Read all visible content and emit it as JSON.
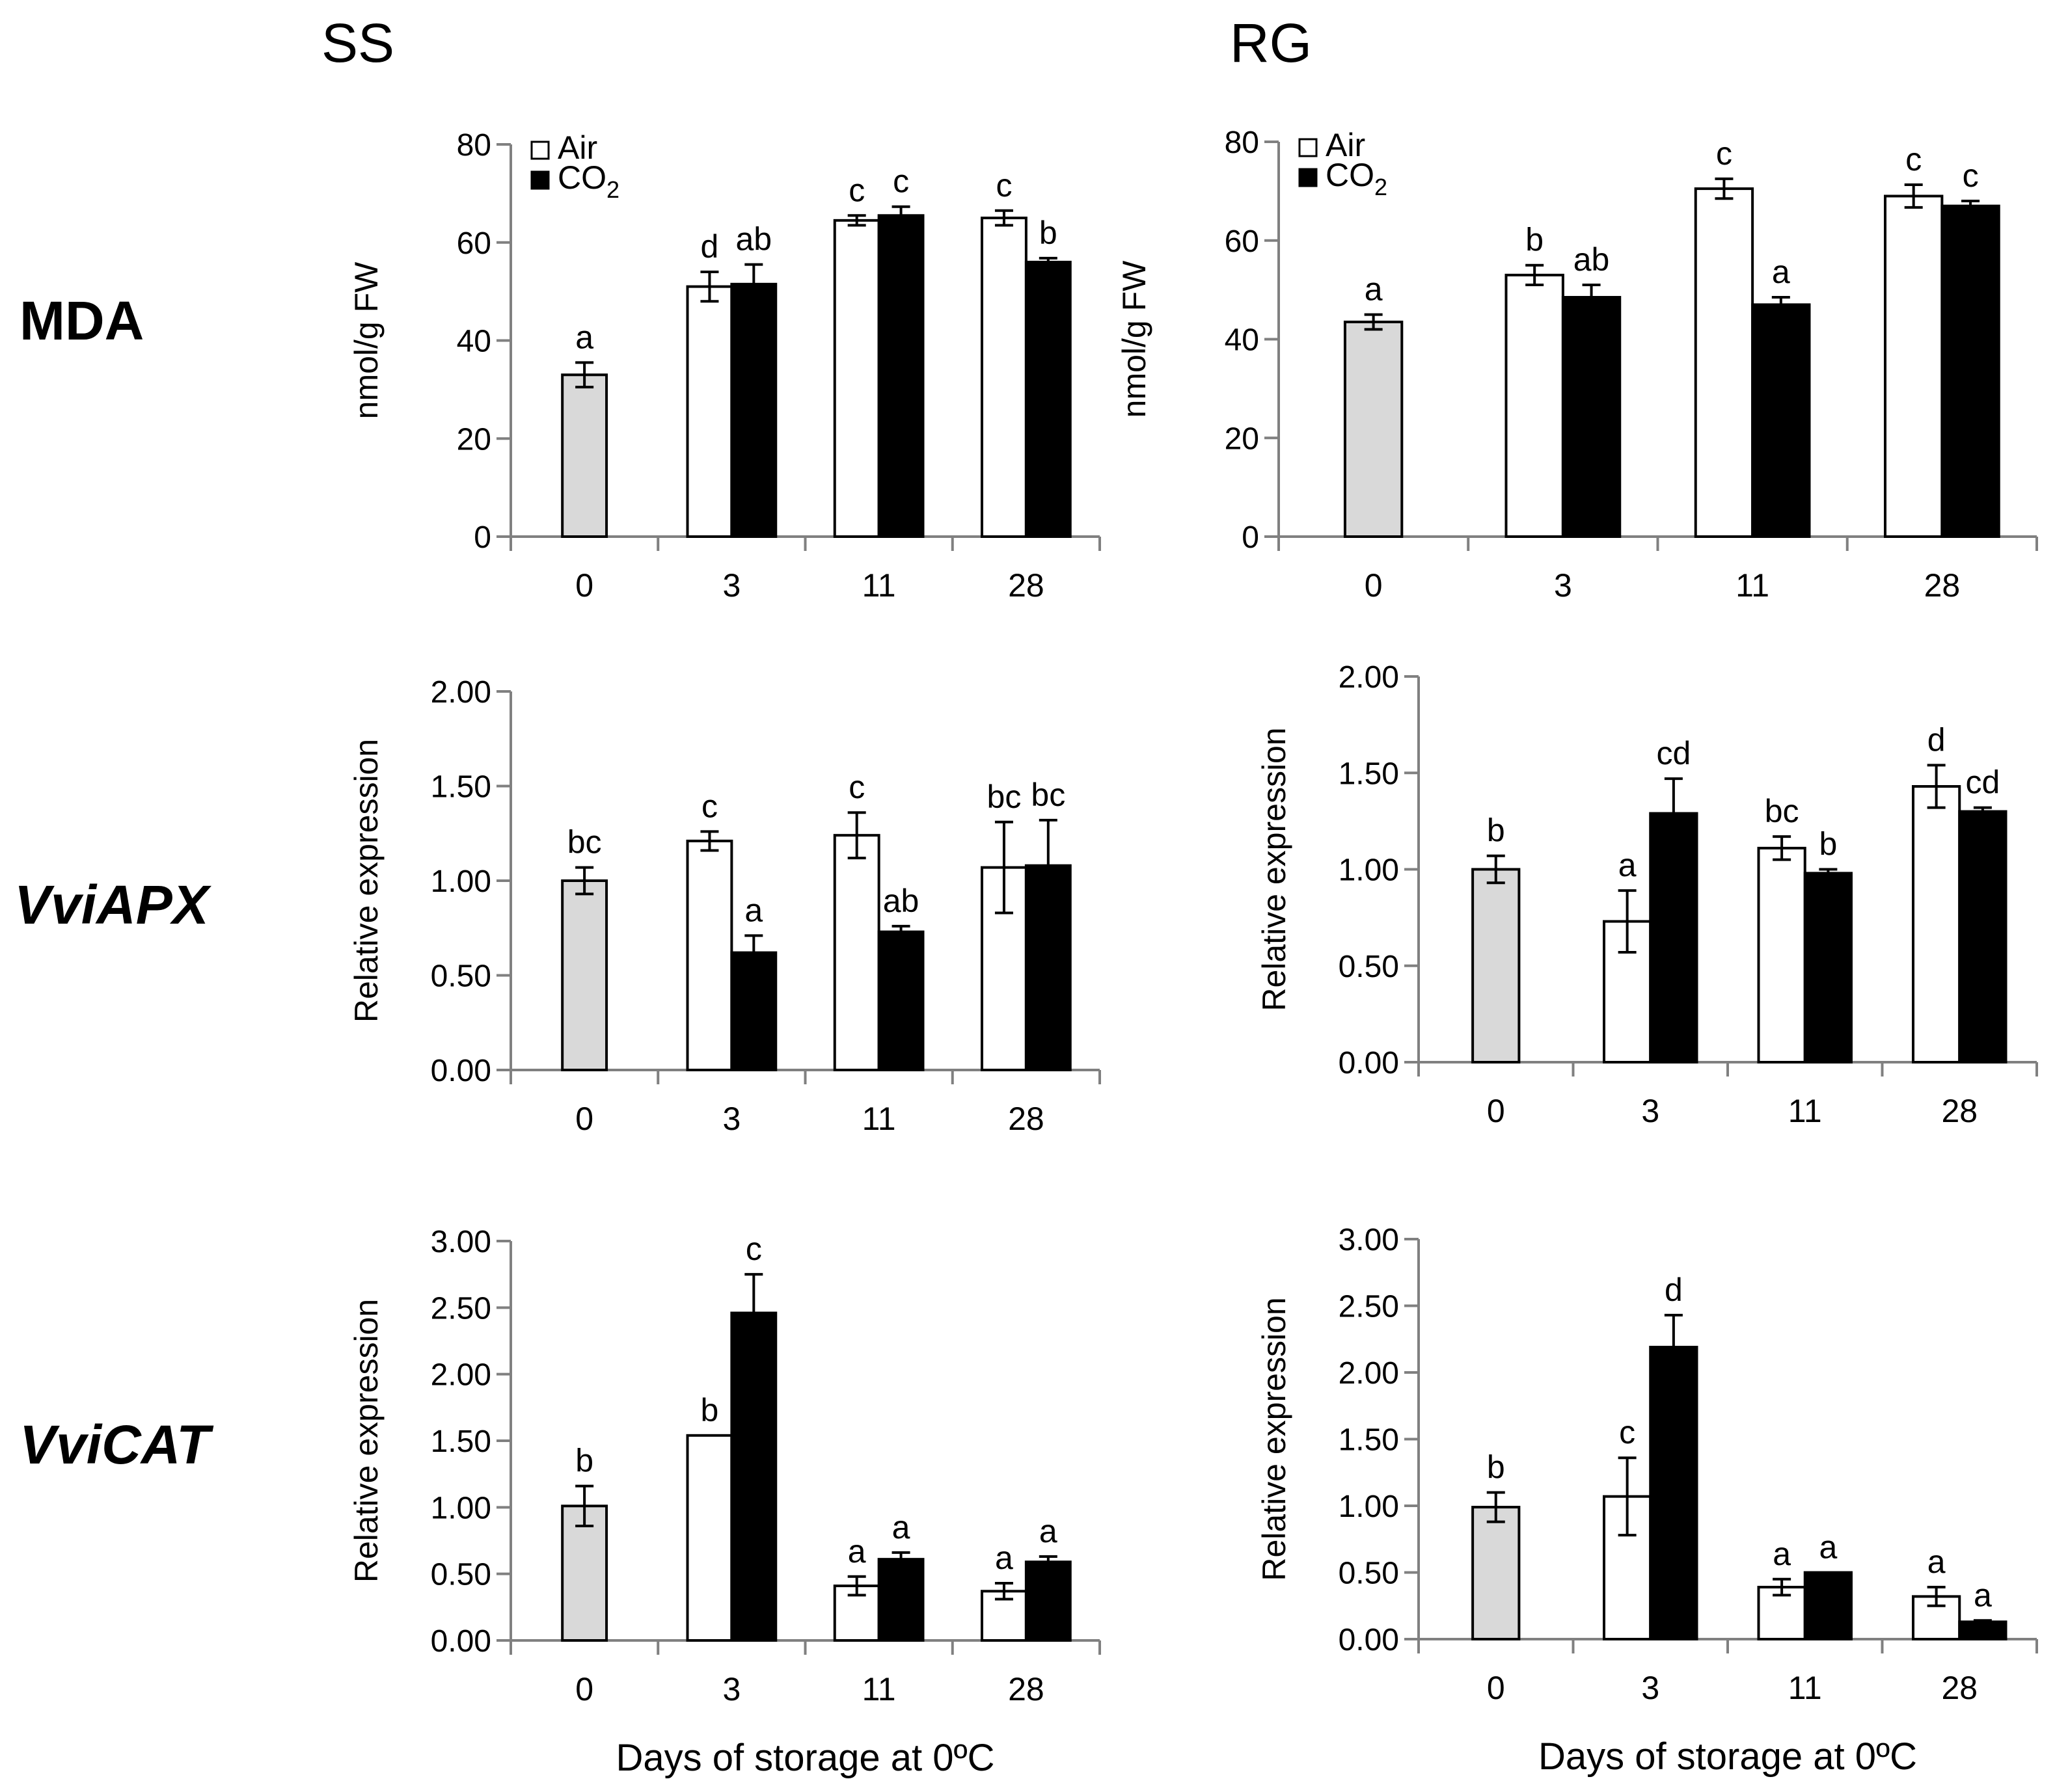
{
  "figure": {
    "column_titles": [
      "SS",
      "RG"
    ],
    "row_labels": [
      "MDA",
      "VviAPX",
      "VviCAT"
    ],
    "xlabel": "Days of storage at 0ºC",
    "legend": [
      {
        "label": "Air",
        "fill": "#ffffff"
      },
      {
        "label": "CO",
        "subscript": "2",
        "fill": "#000000"
      }
    ],
    "colors": {
      "control": "#d9d9d9",
      "air": "#ffffff",
      "co2": "#000000",
      "axis": "#808080",
      "stroke": "#000000"
    }
  },
  "chart_data": [
    {
      "id": "ss-mda",
      "type": "bar",
      "cultivar": "SS",
      "row": "MDA",
      "title": "",
      "xlabel": "",
      "ylabel": "nmol/g FW",
      "ylim": [
        0,
        80
      ],
      "yticks": [
        "0",
        "20",
        "40",
        "60",
        "80"
      ],
      "categories": [
        "0",
        "3",
        "11",
        "28"
      ],
      "legend": true,
      "bars": [
        {
          "day": "0",
          "series": "control",
          "value": 33,
          "err": 2.5,
          "letter": "a"
        },
        {
          "day": "3",
          "series": "Air",
          "value": 51,
          "err": 3,
          "letter": "d"
        },
        {
          "day": "3",
          "series": "CO2",
          "value": 51.5,
          "err": 4,
          "letter": "ab"
        },
        {
          "day": "11",
          "series": "Air",
          "value": 64.5,
          "err": 1,
          "letter": "c"
        },
        {
          "day": "11",
          "series": "CO2",
          "value": 65.5,
          "err": 1.8,
          "letter": "c"
        },
        {
          "day": "28",
          "series": "Air",
          "value": 65,
          "err": 1.5,
          "letter": "c"
        },
        {
          "day": "28",
          "series": "CO2",
          "value": 56,
          "err": 0.8,
          "letter": "b"
        }
      ]
    },
    {
      "id": "rg-mda",
      "type": "bar",
      "cultivar": "RG",
      "row": "MDA",
      "title": "",
      "xlabel": "",
      "ylabel": "nmol/g FW",
      "ylim": [
        0,
        80
      ],
      "yticks": [
        "0",
        "20",
        "40",
        "60",
        "80"
      ],
      "categories": [
        "0",
        "3",
        "11",
        "28"
      ],
      "legend": true,
      "bars": [
        {
          "day": "0",
          "series": "control",
          "value": 43.5,
          "err": 1.5,
          "letter": "a"
        },
        {
          "day": "3",
          "series": "Air",
          "value": 53,
          "err": 2,
          "letter": "b"
        },
        {
          "day": "3",
          "series": "CO2",
          "value": 48.5,
          "err": 2.5,
          "letter": "ab"
        },
        {
          "day": "11",
          "series": "Air",
          "value": 70.5,
          "err": 2,
          "letter": "c"
        },
        {
          "day": "11",
          "series": "CO2",
          "value": 47,
          "err": 1.5,
          "letter": "a"
        },
        {
          "day": "28",
          "series": "Air",
          "value": 69,
          "err": 2.3,
          "letter": "c"
        },
        {
          "day": "28",
          "series": "CO2",
          "value": 67,
          "err": 1,
          "letter": "c"
        }
      ]
    },
    {
      "id": "ss-apx",
      "type": "bar",
      "cultivar": "SS",
      "row": "VviAPX",
      "title": "",
      "xlabel": "",
      "ylabel": "Relative expression",
      "ylim": [
        0,
        2
      ],
      "yticks": [
        "0.00",
        "0.50",
        "1.00",
        "1.50",
        "2.00"
      ],
      "categories": [
        "0",
        "3",
        "11",
        "28"
      ],
      "legend": false,
      "bars": [
        {
          "day": "0",
          "series": "control",
          "value": 1.0,
          "err": 0.07,
          "letter": "bc"
        },
        {
          "day": "3",
          "series": "Air",
          "value": 1.21,
          "err": 0.05,
          "letter": "c"
        },
        {
          "day": "3",
          "series": "CO2",
          "value": 0.62,
          "err": 0.09,
          "letter": "a"
        },
        {
          "day": "11",
          "series": "Air",
          "value": 1.24,
          "err": 0.12,
          "letter": "c"
        },
        {
          "day": "11",
          "series": "CO2",
          "value": 0.73,
          "err": 0.03,
          "letter": "ab"
        },
        {
          "day": "28",
          "series": "Air",
          "value": 1.07,
          "err": 0.24,
          "letter": "bc"
        },
        {
          "day": "28",
          "series": "CO2",
          "value": 1.08,
          "err": 0.24,
          "letter": "bc"
        }
      ]
    },
    {
      "id": "rg-apx",
      "type": "bar",
      "cultivar": "RG",
      "row": "VviAPX",
      "title": "",
      "xlabel": "",
      "ylabel": "Relative expression",
      "ylim": [
        0,
        2
      ],
      "yticks": [
        "0.00",
        "0.50",
        "1.00",
        "1.50",
        "2.00"
      ],
      "categories": [
        "0",
        "3",
        "11",
        "28"
      ],
      "legend": false,
      "bars": [
        {
          "day": "0",
          "series": "control",
          "value": 1.0,
          "err": 0.07,
          "letter": "b"
        },
        {
          "day": "3",
          "series": "Air",
          "value": 0.73,
          "err": 0.16,
          "letter": "a"
        },
        {
          "day": "3",
          "series": "CO2",
          "value": 1.29,
          "err": 0.18,
          "letter": "cd"
        },
        {
          "day": "11",
          "series": "Air",
          "value": 1.11,
          "err": 0.06,
          "letter": "bc"
        },
        {
          "day": "11",
          "series": "CO2",
          "value": 0.98,
          "err": 0.02,
          "letter": "b"
        },
        {
          "day": "28",
          "series": "Air",
          "value": 1.43,
          "err": 0.11,
          "letter": "d"
        },
        {
          "day": "28",
          "series": "CO2",
          "value": 1.3,
          "err": 0.02,
          "letter": "cd"
        }
      ]
    },
    {
      "id": "ss-cat",
      "type": "bar",
      "cultivar": "SS",
      "row": "VviCAT",
      "title": "",
      "xlabel": "Days of storage at 0ºC",
      "ylabel": "Relative expression",
      "ylim": [
        0,
        3
      ],
      "yticks": [
        "0.00",
        "0.50",
        "1.00",
        "1.50",
        "2.00",
        "2.50",
        "3.00"
      ],
      "categories": [
        "0",
        "3",
        "11",
        "28"
      ],
      "legend": false,
      "bars": [
        {
          "day": "0",
          "series": "control",
          "value": 1.01,
          "err": 0.15,
          "letter": "b"
        },
        {
          "day": "3",
          "series": "Air",
          "value": 1.54,
          "err": 0,
          "letter": "b"
        },
        {
          "day": "3",
          "series": "CO2",
          "value": 2.46,
          "err": 0.29,
          "letter": "c"
        },
        {
          "day": "11",
          "series": "Air",
          "value": 0.41,
          "err": 0.07,
          "letter": "a"
        },
        {
          "day": "11",
          "series": "CO2",
          "value": 0.61,
          "err": 0.05,
          "letter": "a"
        },
        {
          "day": "28",
          "series": "Air",
          "value": 0.37,
          "err": 0.06,
          "letter": "a"
        },
        {
          "day": "28",
          "series": "CO2",
          "value": 0.59,
          "err": 0.04,
          "letter": "a"
        }
      ]
    },
    {
      "id": "rg-cat",
      "type": "bar",
      "cultivar": "RG",
      "row": "VviCAT",
      "title": "",
      "xlabel": "Days of storage at 0ºC",
      "ylabel": "Relative expression",
      "ylim": [
        0,
        3
      ],
      "yticks": [
        "0.00",
        "0.50",
        "1.00",
        "1.50",
        "2.00",
        "2.50",
        "3.00"
      ],
      "categories": [
        "0",
        "3",
        "11",
        "28"
      ],
      "legend": false,
      "bars": [
        {
          "day": "0",
          "series": "control",
          "value": 0.99,
          "err": 0.11,
          "letter": "b"
        },
        {
          "day": "3",
          "series": "Air",
          "value": 1.07,
          "err": 0.29,
          "letter": "c"
        },
        {
          "day": "3",
          "series": "CO2",
          "value": 2.19,
          "err": 0.24,
          "letter": "d"
        },
        {
          "day": "11",
          "series": "Air",
          "value": 0.39,
          "err": 0.06,
          "letter": "a"
        },
        {
          "day": "11",
          "series": "CO2",
          "value": 0.5,
          "err": 0,
          "letter": "a"
        },
        {
          "day": "28",
          "series": "Air",
          "value": 0.32,
          "err": 0.07,
          "letter": "a"
        },
        {
          "day": "28",
          "series": "CO2",
          "value": 0.13,
          "err": 0.01,
          "letter": "a"
        }
      ]
    }
  ]
}
